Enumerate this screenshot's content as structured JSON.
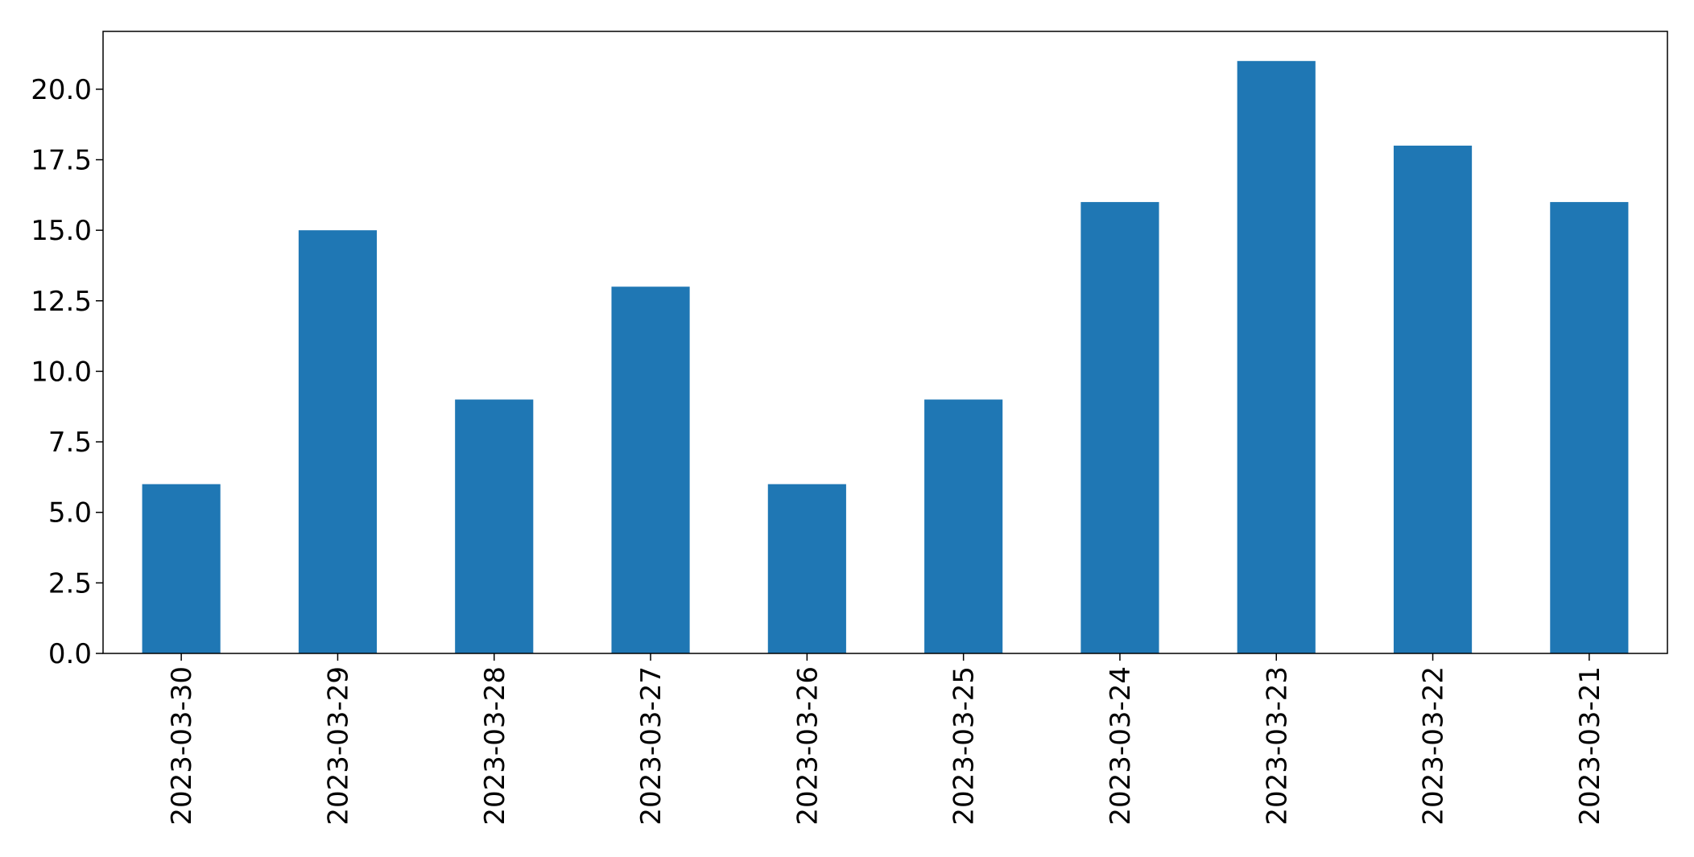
{
  "chart_data": {
    "type": "bar",
    "title": "",
    "xlabel": "",
    "ylabel": "",
    "categories": [
      "2023-03-30",
      "2023-03-29",
      "2023-03-28",
      "2023-03-27",
      "2023-03-26",
      "2023-03-25",
      "2023-03-24",
      "2023-03-23",
      "2023-03-22",
      "2023-03-21"
    ],
    "values": [
      6,
      15,
      9,
      13,
      6,
      9,
      16,
      21,
      18,
      16
    ],
    "ylim": [
      0,
      22.05
    ],
    "yticks": [
      "0.0",
      "2.5",
      "5.0",
      "7.5",
      "10.0",
      "12.5",
      "15.0",
      "17.5",
      "20.0"
    ],
    "bar_color": "#1f77b4",
    "grid": false,
    "legend": "none"
  }
}
